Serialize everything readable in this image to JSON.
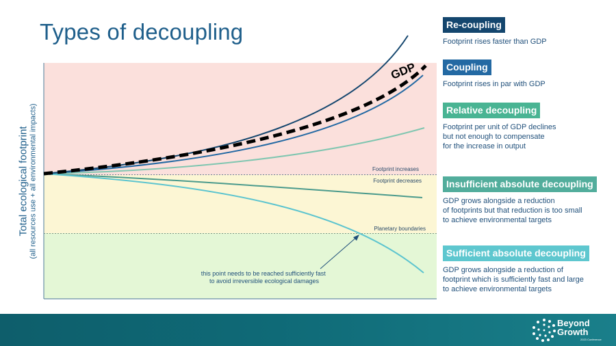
{
  "title": "Types of decoupling",
  "y_axis": {
    "line1": "Total ecological footprint",
    "line2": "(all resources use +  all environmental impacts)"
  },
  "zones": {
    "increase_label": "Footprint increases",
    "decrease_label": "Footprint decreases",
    "boundary_label": "Planetary boundaries"
  },
  "gdp_label": "GDP",
  "annotation": "this point needs to be reached sufficiently fast\nto avoid irreversible ecological damages",
  "colors": {
    "zone_increase": "#fbe0dc",
    "zone_decrease": "#fcf6d4",
    "zone_boundary": "#e4f7d6",
    "recoupling": "#14466e",
    "coupling": "#2369a3",
    "relative": "#7fc6b0",
    "insufficient": "#4a9a8c",
    "sufficient": "#5cc4cf",
    "gdp": "#000000"
  },
  "legend": [
    {
      "title": "Re-coupling",
      "color": "#14466e",
      "desc": "Footprint rises faster than GDP"
    },
    {
      "title": "Coupling",
      "color": "#2369a3",
      "desc": "Footprint rises in par with GDP"
    },
    {
      "title": "Relative decoupling",
      "color": "#49b493",
      "desc": "Footprint per unit of GDP declines\nbut not enough to compensate\nfor the increase in output"
    },
    {
      "title": "Insufficient absolute decoupling",
      "color": "#52ad9c",
      "desc": "GDP grows alongside a reduction\nof footprints but that reduction is too small\nto achieve environmental targets"
    },
    {
      "title": "Sufficient absolute decoupling",
      "color": "#5ec7cf",
      "desc": "GDP grows alongside a reduction of\nfootprint which is sufficiently fast and large\nto achieve environmental targets"
    }
  ],
  "logo": {
    "text": "Beyond\nGrowth",
    "sub": "2023 Conference"
  }
}
